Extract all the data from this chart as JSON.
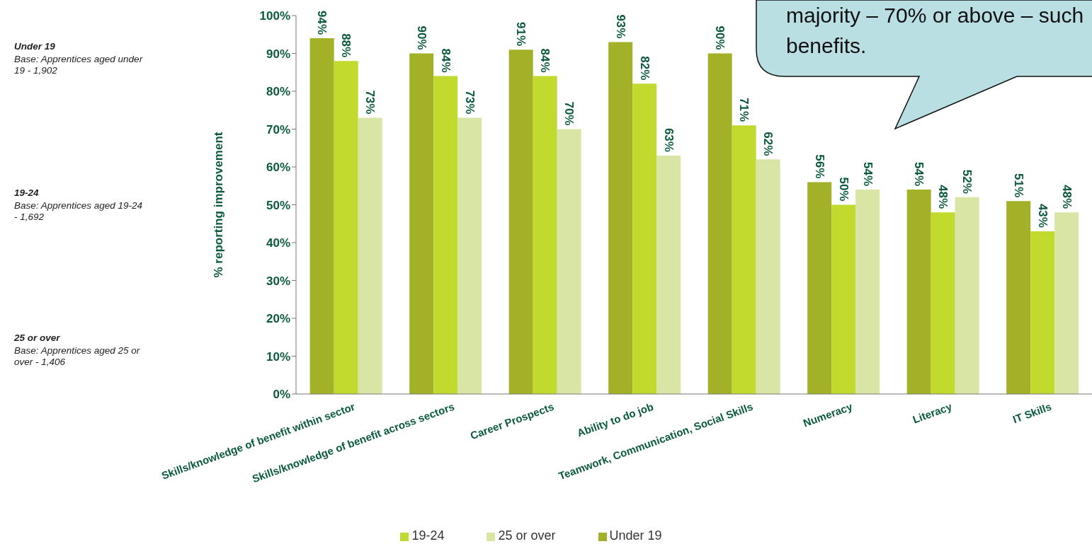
{
  "chart_data": {
    "type": "bar",
    "ylabel": "% reporting improvement",
    "categories": [
      "Skills/knowledge of benefit within sector",
      "Skills/knowledge of benefit across sectors",
      "Career Prospects",
      "Ability to do job",
      "Teamwork, Communication, Social Skills",
      "Numeracy",
      "Literacy",
      "IT Skills"
    ],
    "series": [
      {
        "name": "Under 19",
        "color": "#a2b127",
        "values": [
          94,
          90,
          91,
          93,
          90,
          56,
          54,
          51
        ],
        "value_labels": [
          "94%",
          "90%",
          "91%",
          "93%",
          "90%",
          "56%",
          "54%",
          "51%"
        ]
      },
      {
        "name": "19-24",
        "color": "#c2d92e",
        "values": [
          88,
          84,
          84,
          82,
          71,
          50,
          48,
          43
        ],
        "value_labels": [
          "88%",
          "84%",
          "84%",
          "82%",
          "71%",
          "50%",
          "48%",
          "43%"
        ]
      },
      {
        "name": "25 or over",
        "color": "#d9e5a5",
        "values": [
          73,
          73,
          70,
          63,
          62,
          54,
          52,
          48
        ],
        "value_labels": [
          "73%",
          "73%",
          "70%",
          "63%",
          "62%",
          "54%",
          "52%",
          "48%"
        ]
      }
    ],
    "ylim": [
      0,
      100
    ],
    "yticks": [
      {
        "value": 0,
        "label": "0%"
      },
      {
        "value": 10,
        "label": "10%"
      },
      {
        "value": 20,
        "label": "20%"
      },
      {
        "value": 30,
        "label": "30%"
      },
      {
        "value": 40,
        "label": "40%"
      },
      {
        "value": 50,
        "label": "50%"
      },
      {
        "value": 60,
        "label": "60%"
      },
      {
        "value": 70,
        "label": "70%"
      },
      {
        "value": 80,
        "label": "80%"
      },
      {
        "value": 90,
        "label": "90%"
      },
      {
        "value": 100,
        "label": "100%"
      }
    ],
    "grid": false,
    "legend": "bottom",
    "annotations": [
      "Under 19",
      "Base:  Apprentices aged under 19 - 1,902",
      "19-24",
      "Base: Apprentices aged 19-24 - 1,692",
      "25 or over",
      "Base:  Apprentices aged 25 or over - 1,406",
      "majority – 70% or above – such benefits."
    ]
  }
}
